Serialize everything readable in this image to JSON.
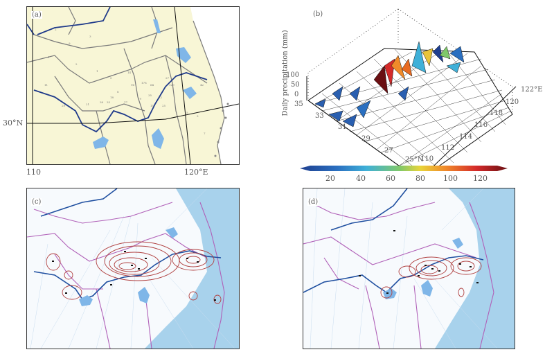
{
  "panels": {
    "a": {
      "tag": "(a)",
      "lon_labels": [
        "110",
        "120°E"
      ],
      "lat_labels": [
        "30°N"
      ],
      "station_values": [
        "2",
        "9",
        "1",
        "3",
        "2",
        "1",
        "5",
        "14",
        "96",
        "178",
        "64",
        "129",
        "35",
        "27",
        "22",
        "19",
        "8",
        "17",
        "38",
        "33",
        "25",
        "15",
        "21",
        "29",
        "11",
        "18",
        "42",
        "3",
        "5",
        "7"
      ]
    },
    "b": {
      "tag": "(b)",
      "zlabel": "Daily precipitation (mm)",
      "z_ticks": [
        "100",
        "50",
        "0"
      ],
      "lat_ticks": [
        "35",
        "33",
        "31",
        "29",
        "27",
        "25°N"
      ],
      "lon_ticks": [
        "110",
        "112",
        "114",
        "116",
        "118",
        "120",
        "122°E"
      ],
      "colorbar": {
        "ticks": [
          "20",
          "40",
          "60",
          "80",
          "100",
          "120"
        ],
        "colors": [
          "#1f3f8f",
          "#2a6fc0",
          "#3fb0d8",
          "#7fc86a",
          "#e8d43a",
          "#f08a2a",
          "#d42a2a",
          "#6a0f12"
        ]
      }
    },
    "c": {
      "tag": "(c)"
    },
    "d": {
      "tag": "(d)"
    }
  },
  "colors": {
    "land": "#f8f6d6",
    "river": "#1f3a8a",
    "lake": "#7fb6e8",
    "province_border_a": "#7a7a7a",
    "province_border_cd": "#b060b8",
    "contour": "#b04040",
    "sea": "#9fd0ea"
  }
}
